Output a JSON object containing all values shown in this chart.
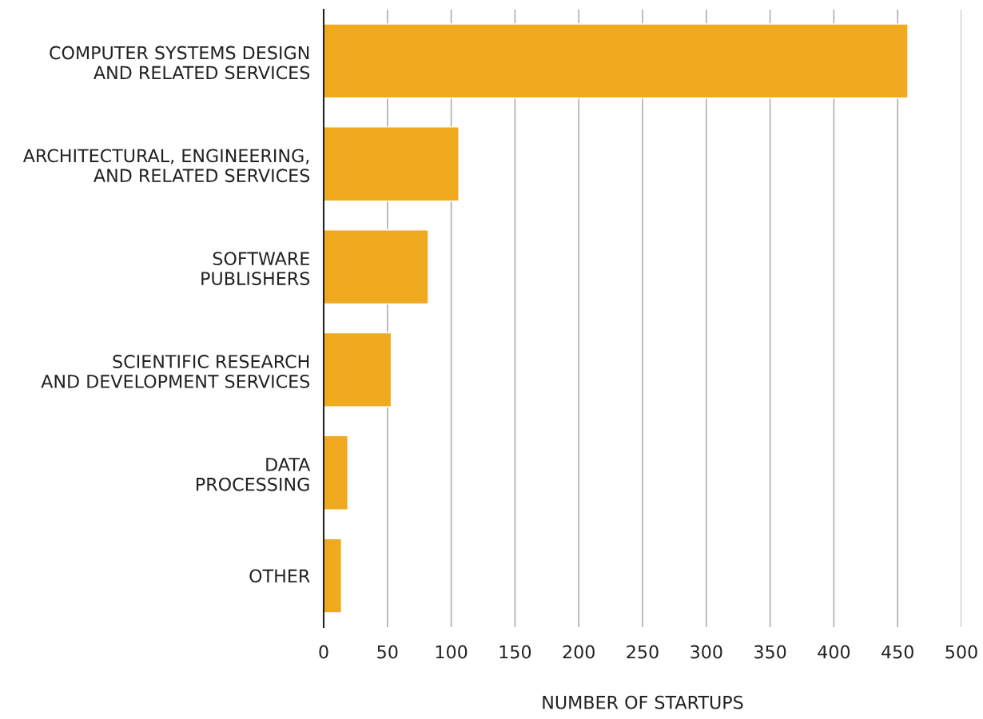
{
  "chart_data": {
    "type": "bar",
    "orientation": "horizontal",
    "xlabel": "NUMBER OF STARTUPS",
    "categories": [
      "COMPUTER SYSTEMS DESIGN\nAND RELATED SERVICES",
      "ARCHITECTURAL, ENGINEERING,\nAND RELATED SERVICES",
      "SOFTWARE\nPUBLISHERS",
      "SCIENTIFIC RESEARCH\nAND DEVELOPMENT SERVICES",
      "DATA\nPROCESSING",
      "OTHER"
    ],
    "values": [
      458,
      106,
      82,
      53,
      19,
      14
    ],
    "color": "#f0aa1f",
    "xlim": [
      0,
      500
    ],
    "xticks": [
      0,
      50,
      100,
      150,
      200,
      250,
      300,
      350,
      400,
      450,
      500
    ],
    "grid": "x"
  }
}
